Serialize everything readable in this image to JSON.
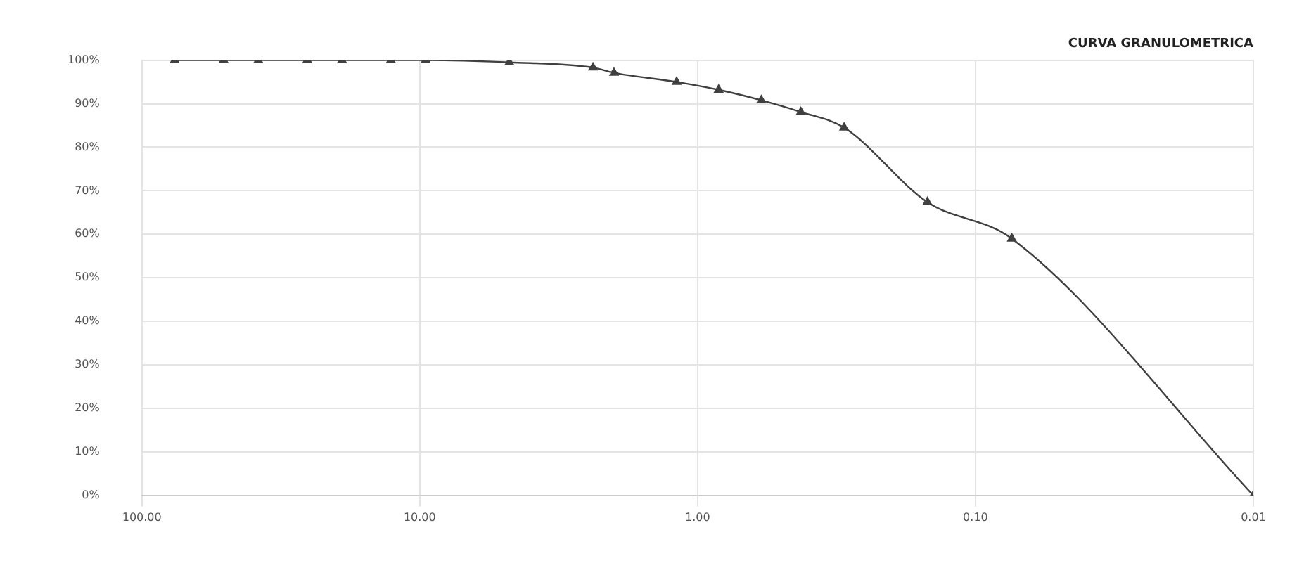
{
  "chart_data": {
    "type": "line",
    "title": "CURVA GRANULOMETRICA",
    "x": [
      76.2,
      50.8,
      38.1,
      25.4,
      19.05,
      12.7,
      9.525,
      4.76,
      2.38,
      2.0,
      1.19,
      0.84,
      0.59,
      0.425,
      0.297,
      0.149,
      0.074,
      0.01
    ],
    "series": [
      {
        "color": "#404040",
        "values": [
          100,
          100,
          100,
          100,
          100,
          100,
          100,
          99.5,
          98.3,
          97.1,
          95,
          93.2,
          90.8,
          88.1,
          84.5,
          67.4,
          59,
          0
        ]
      }
    ],
    "log": "x",
    "xlim": [
      100,
      0.01
    ],
    "xticks": [
      {
        "value": 100,
        "label": "100.00"
      },
      {
        "value": 10,
        "label": "10.00"
      },
      {
        "value": 1,
        "label": "1.00"
      },
      {
        "value": 0.1,
        "label": "0.10"
      },
      {
        "value": 0.01,
        "label": "0.01"
      }
    ],
    "ylim": [
      0,
      100
    ],
    "yticks": [
      {
        "value": 0,
        "label": "0%"
      },
      {
        "value": 10,
        "label": "10%"
      },
      {
        "value": 20,
        "label": "20%"
      },
      {
        "value": 30,
        "label": "30%"
      },
      {
        "value": 40,
        "label": "40%"
      },
      {
        "value": 50,
        "label": "50%"
      },
      {
        "value": 60,
        "label": "60%"
      },
      {
        "value": 70,
        "label": "70%"
      },
      {
        "value": 80,
        "label": "80%"
      },
      {
        "value": 90,
        "label": "90%"
      },
      {
        "value": 100,
        "label": "100%"
      }
    ],
    "grid": true,
    "legend": false,
    "marker": "triangle",
    "line_style": "solid"
  }
}
